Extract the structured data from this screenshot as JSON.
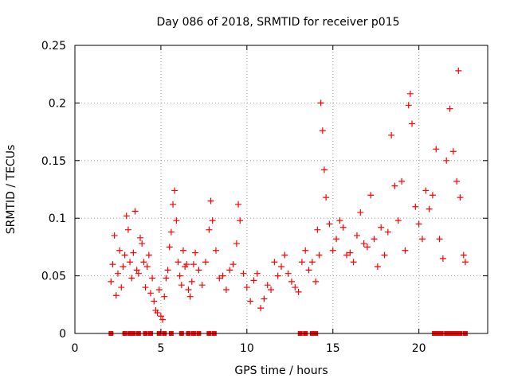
{
  "chart_data": {
    "type": "scatter",
    "title": "Day 086 of 2018, SRMTID for receiver p015",
    "xlabel": "GPS time / hours",
    "ylabel": "SRMTID / TECUs",
    "xlim": [
      0,
      24
    ],
    "ylim": [
      0,
      0.25
    ],
    "x_ticks": [
      0,
      5,
      10,
      15,
      20
    ],
    "x_tick_labels": [
      "0",
      "5",
      "10",
      "15",
      "20"
    ],
    "y_ticks": [
      0,
      0.05,
      0.1,
      0.15,
      0.2,
      0.25
    ],
    "y_tick_labels": [
      "0",
      "0.05",
      "0.1",
      "0.15",
      "0.2",
      "0.25"
    ],
    "grid": true,
    "marker": "plus",
    "baseline_marker": "square",
    "color": "#ff0000",
    "points": [
      [
        2.1,
        0.045
      ],
      [
        2.2,
        0.06
      ],
      [
        2.3,
        0.085
      ],
      [
        2.4,
        0.033
      ],
      [
        2.5,
        0.052
      ],
      [
        2.6,
        0.072
      ],
      [
        2.7,
        0.04
      ],
      [
        2.8,
        0.058
      ],
      [
        2.9,
        0.068
      ],
      [
        3.0,
        0.102
      ],
      [
        3.1,
        0.09
      ],
      [
        3.2,
        0.062
      ],
      [
        3.3,
        0.048
      ],
      [
        3.4,
        0.07
      ],
      [
        3.5,
        0.106
      ],
      [
        3.6,
        0.055
      ],
      [
        3.7,
        0.052
      ],
      [
        3.8,
        0.083
      ],
      [
        3.9,
        0.078
      ],
      [
        4.0,
        0.062
      ],
      [
        4.1,
        0.04
      ],
      [
        4.2,
        0.058
      ],
      [
        4.3,
        0.068
      ],
      [
        4.4,
        0.035
      ],
      [
        4.5,
        0.048
      ],
      [
        4.6,
        0.028
      ],
      [
        4.7,
        0.02
      ],
      [
        4.8,
        0.018
      ],
      [
        4.9,
        0.038
      ],
      [
        5.0,
        0.015
      ],
      [
        5.1,
        0.012
      ],
      [
        5.2,
        0.032
      ],
      [
        5.3,
        0.048
      ],
      [
        5.4,
        0.055
      ],
      [
        5.5,
        0.075
      ],
      [
        5.6,
        0.088
      ],
      [
        5.7,
        0.112
      ],
      [
        5.8,
        0.124
      ],
      [
        5.9,
        0.098
      ],
      [
        6.0,
        0.062
      ],
      [
        6.1,
        0.05
      ],
      [
        6.2,
        0.042
      ],
      [
        6.3,
        0.072
      ],
      [
        6.4,
        0.058
      ],
      [
        6.5,
        0.06
      ],
      [
        6.6,
        0.038
      ],
      [
        6.7,
        0.032
      ],
      [
        6.8,
        0.045
      ],
      [
        6.9,
        0.06
      ],
      [
        7.0,
        0.07
      ],
      [
        7.2,
        0.055
      ],
      [
        7.4,
        0.042
      ],
      [
        7.6,
        0.062
      ],
      [
        7.8,
        0.09
      ],
      [
        7.9,
        0.115
      ],
      [
        8.0,
        0.098
      ],
      [
        8.2,
        0.072
      ],
      [
        8.4,
        0.048
      ],
      [
        8.6,
        0.05
      ],
      [
        8.8,
        0.038
      ],
      [
        9.0,
        0.055
      ],
      [
        9.2,
        0.06
      ],
      [
        9.4,
        0.078
      ],
      [
        9.5,
        0.112
      ],
      [
        9.6,
        0.098
      ],
      [
        9.8,
        0.052
      ],
      [
        10.0,
        0.04
      ],
      [
        10.2,
        0.028
      ],
      [
        10.4,
        0.046
      ],
      [
        10.6,
        0.052
      ],
      [
        10.8,
        0.022
      ],
      [
        11.0,
        0.03
      ],
      [
        11.2,
        0.042
      ],
      [
        11.4,
        0.038
      ],
      [
        11.6,
        0.062
      ],
      [
        11.8,
        0.05
      ],
      [
        12.0,
        0.058
      ],
      [
        12.2,
        0.068
      ],
      [
        12.4,
        0.052
      ],
      [
        12.6,
        0.045
      ],
      [
        12.8,
        0.04
      ],
      [
        13.0,
        0.036
      ],
      [
        13.2,
        0.062
      ],
      [
        13.4,
        0.072
      ],
      [
        13.6,
        0.055
      ],
      [
        13.8,
        0.062
      ],
      [
        14.0,
        0.045
      ],
      [
        14.1,
        0.09
      ],
      [
        14.2,
        0.068
      ],
      [
        14.3,
        0.2
      ],
      [
        14.4,
        0.176
      ],
      [
        14.5,
        0.142
      ],
      [
        14.6,
        0.118
      ],
      [
        14.8,
        0.095
      ],
      [
        15.0,
        0.072
      ],
      [
        15.2,
        0.082
      ],
      [
        15.4,
        0.098
      ],
      [
        15.6,
        0.092
      ],
      [
        15.8,
        0.068
      ],
      [
        16.0,
        0.07
      ],
      [
        16.2,
        0.062
      ],
      [
        16.4,
        0.085
      ],
      [
        16.6,
        0.105
      ],
      [
        16.8,
        0.078
      ],
      [
        17.0,
        0.075
      ],
      [
        17.2,
        0.12
      ],
      [
        17.4,
        0.082
      ],
      [
        17.6,
        0.058
      ],
      [
        17.8,
        0.092
      ],
      [
        18.0,
        0.068
      ],
      [
        18.2,
        0.088
      ],
      [
        18.4,
        0.172
      ],
      [
        18.6,
        0.128
      ],
      [
        18.8,
        0.098
      ],
      [
        19.0,
        0.132
      ],
      [
        19.2,
        0.072
      ],
      [
        19.4,
        0.198
      ],
      [
        19.5,
        0.208
      ],
      [
        19.6,
        0.182
      ],
      [
        19.8,
        0.11
      ],
      [
        20.0,
        0.095
      ],
      [
        20.2,
        0.082
      ],
      [
        20.4,
        0.124
      ],
      [
        20.6,
        0.108
      ],
      [
        20.8,
        0.12
      ],
      [
        21.0,
        0.16
      ],
      [
        21.2,
        0.082
      ],
      [
        21.4,
        0.065
      ],
      [
        21.6,
        0.15
      ],
      [
        21.8,
        0.195
      ],
      [
        22.0,
        0.158
      ],
      [
        22.2,
        0.132
      ],
      [
        22.3,
        0.228
      ],
      [
        22.4,
        0.118
      ],
      [
        22.6,
        0.068
      ],
      [
        22.7,
        0.062
      ]
    ],
    "zero_points": [
      2.1,
      2.9,
      3.2,
      3.4,
      3.7,
      4.1,
      4.4,
      4.9,
      5.2,
      5.6,
      6.2,
      6.6,
      6.9,
      7.2,
      7.8,
      8.1,
      13.1,
      13.4,
      13.8,
      14.0,
      20.9,
      21.1,
      21.3,
      21.6,
      21.8,
      22.0,
      22.2,
      22.4,
      22.7
    ]
  }
}
